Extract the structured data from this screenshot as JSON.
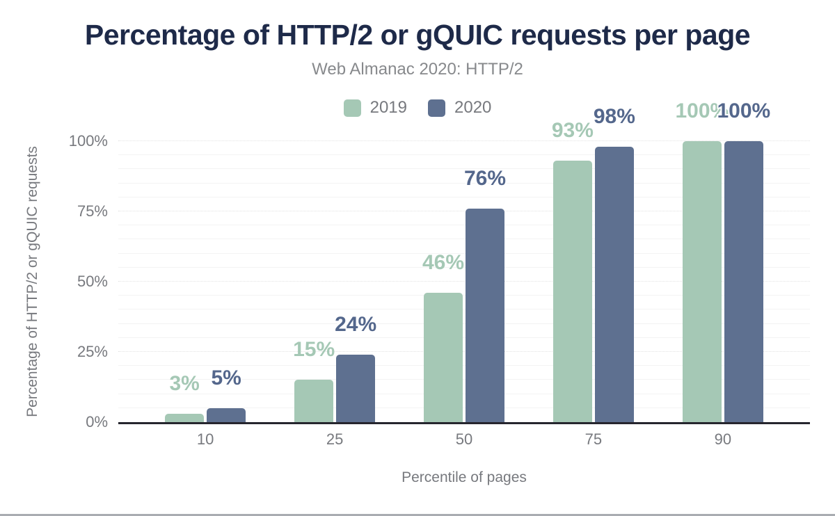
{
  "chart_data": {
    "type": "bar",
    "title": "Percentage of HTTP/2 or gQUIC requests per page",
    "subtitle": "Web Almanac 2020: HTTP/2",
    "categories": [
      "10",
      "25",
      "50",
      "75",
      "90"
    ],
    "series": [
      {
        "name": "2019",
        "color": "#a5c8b5",
        "label_color": "#a5c8b5",
        "values": [
          3,
          15,
          46,
          93,
          100
        ],
        "labels": [
          "3%",
          "15%",
          "46%",
          "93%",
          "100%"
        ]
      },
      {
        "name": "2020",
        "color": "#5e7090",
        "label_color": "#54678c",
        "values": [
          5,
          24,
          76,
          98,
          100
        ],
        "labels": [
          "5%",
          "24%",
          "76%",
          "98%",
          "100%"
        ]
      }
    ],
    "xlabel": "Percentile of pages",
    "ylabel": "Percentage of HTTP/2 or gQUIC requests",
    "ylim": [
      0,
      100
    ],
    "ytick_values": [
      0,
      25,
      50,
      75,
      100
    ],
    "ytick_labels": [
      "0%",
      "25%",
      "50%",
      "75%",
      "100%"
    ],
    "legend_position": "top",
    "grid": {
      "minor_step": 5,
      "major_step": 25
    }
  }
}
